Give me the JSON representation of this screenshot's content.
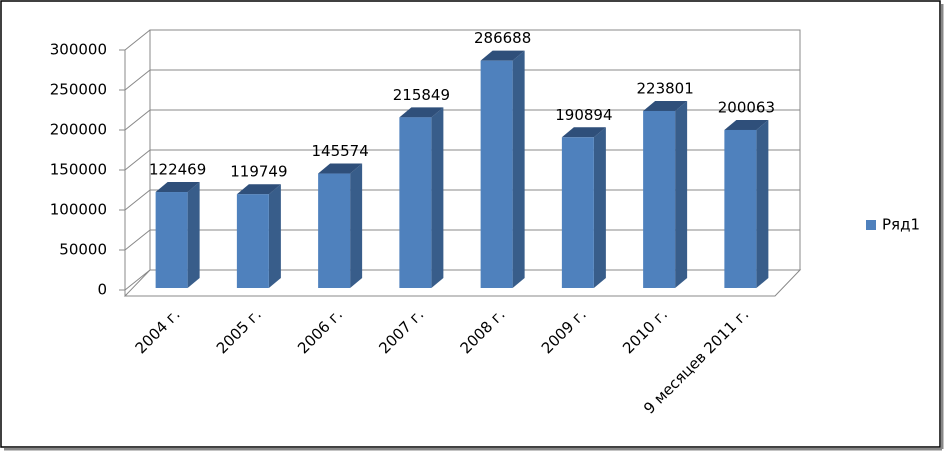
{
  "chart_data": {
    "type": "bar",
    "categories": [
      "2004 г.",
      "2005 г.",
      "2006 г.",
      "2007 г.",
      "2008 г.",
      "2009 г.",
      "2010 г.",
      "9 месяцев 2011 г."
    ],
    "series": [
      {
        "name": "Ряд1",
        "color": "#4f81bd",
        "values": [
          122469,
          119749,
          145574,
          215849,
          286688,
          190894,
          223801,
          200063
        ]
      }
    ],
    "ylim": [
      0,
      300000
    ],
    "yticks": [
      0,
      50000,
      100000,
      150000,
      200000,
      250000,
      300000
    ],
    "grid": true,
    "legend": "right"
  }
}
